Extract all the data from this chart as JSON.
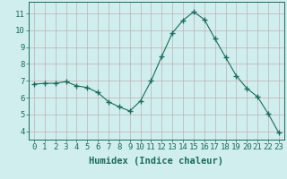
{
  "x": [
    0,
    1,
    2,
    3,
    4,
    5,
    6,
    7,
    8,
    9,
    10,
    11,
    12,
    13,
    14,
    15,
    16,
    17,
    18,
    19,
    20,
    21,
    22,
    23
  ],
  "y": [
    6.8,
    6.85,
    6.85,
    6.95,
    6.7,
    6.6,
    6.3,
    5.75,
    5.45,
    5.2,
    5.8,
    7.0,
    8.45,
    9.85,
    10.6,
    11.1,
    10.65,
    9.5,
    8.4,
    7.3,
    6.55,
    6.05,
    5.05,
    3.9
  ],
  "line_color": "#1a6b5a",
  "marker": "+",
  "marker_size": 4,
  "bg_color": "#d0eeee",
  "grid_color": "#c0b0b0",
  "xlabel": "Humidex (Indice chaleur)",
  "xlabel_color": "#1a6b5a",
  "xlabel_fontsize": 7.5,
  "tick_color": "#1a6b5a",
  "tick_fontsize": 6.5,
  "ylim": [
    3.5,
    11.7
  ],
  "xlim": [
    -0.5,
    23.5
  ],
  "yticks": [
    4,
    5,
    6,
    7,
    8,
    9,
    10,
    11
  ],
  "xticks": [
    0,
    1,
    2,
    3,
    4,
    5,
    6,
    7,
    8,
    9,
    10,
    11,
    12,
    13,
    14,
    15,
    16,
    17,
    18,
    19,
    20,
    21,
    22,
    23
  ]
}
